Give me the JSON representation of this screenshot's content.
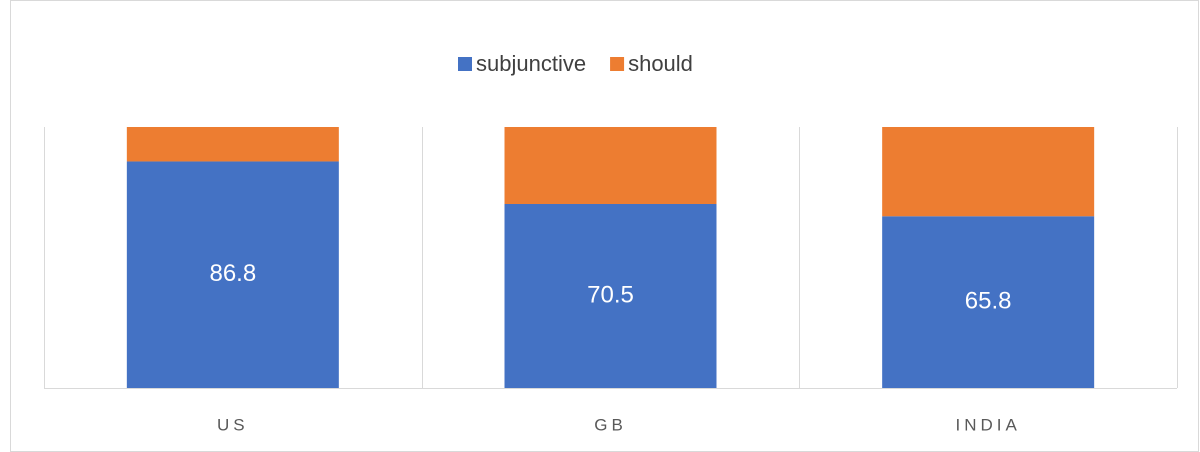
{
  "chart_data": {
    "type": "stacked_bar_100",
    "categories": [
      "US",
      "GB",
      "INDIA"
    ],
    "series": [
      {
        "name": "subjunctive",
        "color": "#4472c4",
        "values": [
          86.8,
          70.5,
          65.8
        ],
        "show_labels": true
      },
      {
        "name": "should",
        "color": "#ed7d31",
        "values": [
          13.2,
          29.5,
          34.2
        ],
        "show_labels": false
      }
    ],
    "ylim": [
      0,
      100
    ],
    "legend": "top"
  }
}
